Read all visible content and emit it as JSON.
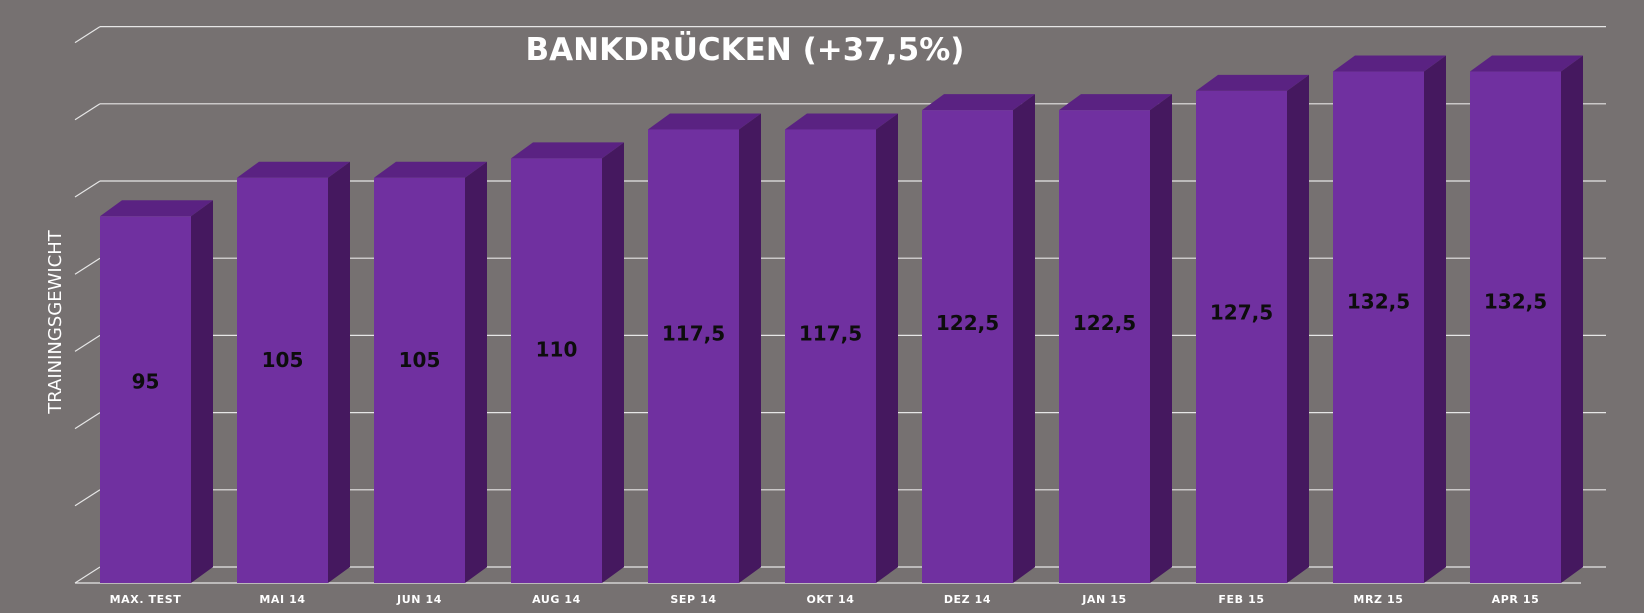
{
  "colors": {
    "background": "#767171",
    "bar_front": "#7030a0",
    "bar_top": "#5a2282",
    "bar_side": "#45185f",
    "gridline": "#e6e6e6",
    "value_label": "#0d0d0d",
    "text": "#ffffff"
  },
  "chart_data": {
    "type": "bar",
    "title": "BANKDRÜCKEN (+37,5%)",
    "ylabel": "TRAININGSGEWICHT",
    "xlabel": "",
    "categories": [
      "MAX. TEST",
      "MAI 14",
      "JUN 14",
      "AUG 14",
      "SEP 14",
      "OKT 14",
      "DEZ 14",
      "JAN 15",
      "FEB 15",
      "MRZ 15",
      "APR 15"
    ],
    "values": [
      95,
      105,
      105,
      110,
      117.5,
      117.5,
      122.5,
      122.5,
      127.5,
      132.5,
      132.5
    ],
    "value_labels": [
      "95",
      "105",
      "105",
      "110",
      "117,5",
      "117,5",
      "122,5",
      "122,5",
      "127,5",
      "132,5",
      "132,5"
    ],
    "ylim": [
      0,
      145
    ],
    "grid": true,
    "legend": "none",
    "three_d": true
  }
}
